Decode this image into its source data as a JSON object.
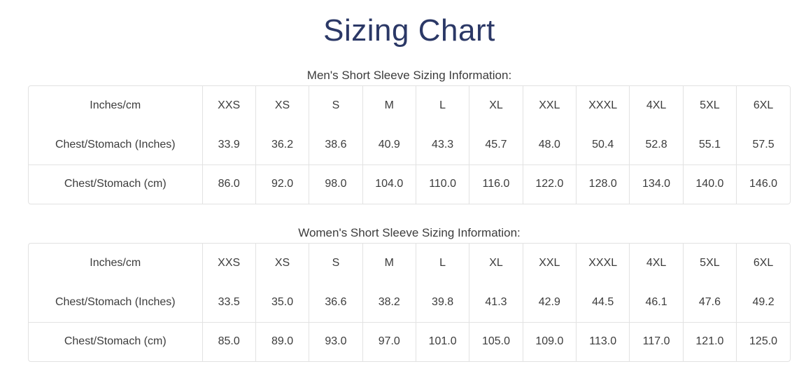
{
  "page": {
    "title": "Sizing Chart"
  },
  "colors": {
    "title": "#2b3866",
    "text": "#3c3c3c",
    "border": "#e2e2e2",
    "background": "#ffffff"
  },
  "tables": [
    {
      "caption": "Men's Short Sleeve Sizing Information:",
      "header": [
        "Inches/cm",
        "XXS",
        "XS",
        "S",
        "M",
        "L",
        "XL",
        "XXL",
        "XXXL",
        "4XL",
        "5XL",
        "6XL"
      ],
      "rows": [
        [
          "Chest/Stomach (Inches)",
          "33.9",
          "36.2",
          "38.6",
          "40.9",
          "43.3",
          "45.7",
          "48.0",
          "50.4",
          "52.8",
          "55.1",
          "57.5"
        ],
        [
          "Chest/Stomach (cm)",
          "86.0",
          "92.0",
          "98.0",
          "104.0",
          "110.0",
          "116.0",
          "122.0",
          "128.0",
          "134.0",
          "140.0",
          "146.0"
        ]
      ]
    },
    {
      "caption": "Women's Short Sleeve Sizing Information:",
      "header": [
        "Inches/cm",
        "XXS",
        "XS",
        "S",
        "M",
        "L",
        "XL",
        "XXL",
        "XXXL",
        "4XL",
        "5XL",
        "6XL"
      ],
      "rows": [
        [
          "Chest/Stomach (Inches)",
          "33.5",
          "35.0",
          "36.6",
          "38.2",
          "39.8",
          "41.3",
          "42.9",
          "44.5",
          "46.1",
          "47.6",
          "49.2"
        ],
        [
          "Chest/Stomach (cm)",
          "85.0",
          "89.0",
          "93.0",
          "97.0",
          "101.0",
          "105.0",
          "109.0",
          "113.0",
          "117.0",
          "121.0",
          "125.0"
        ]
      ]
    }
  ]
}
